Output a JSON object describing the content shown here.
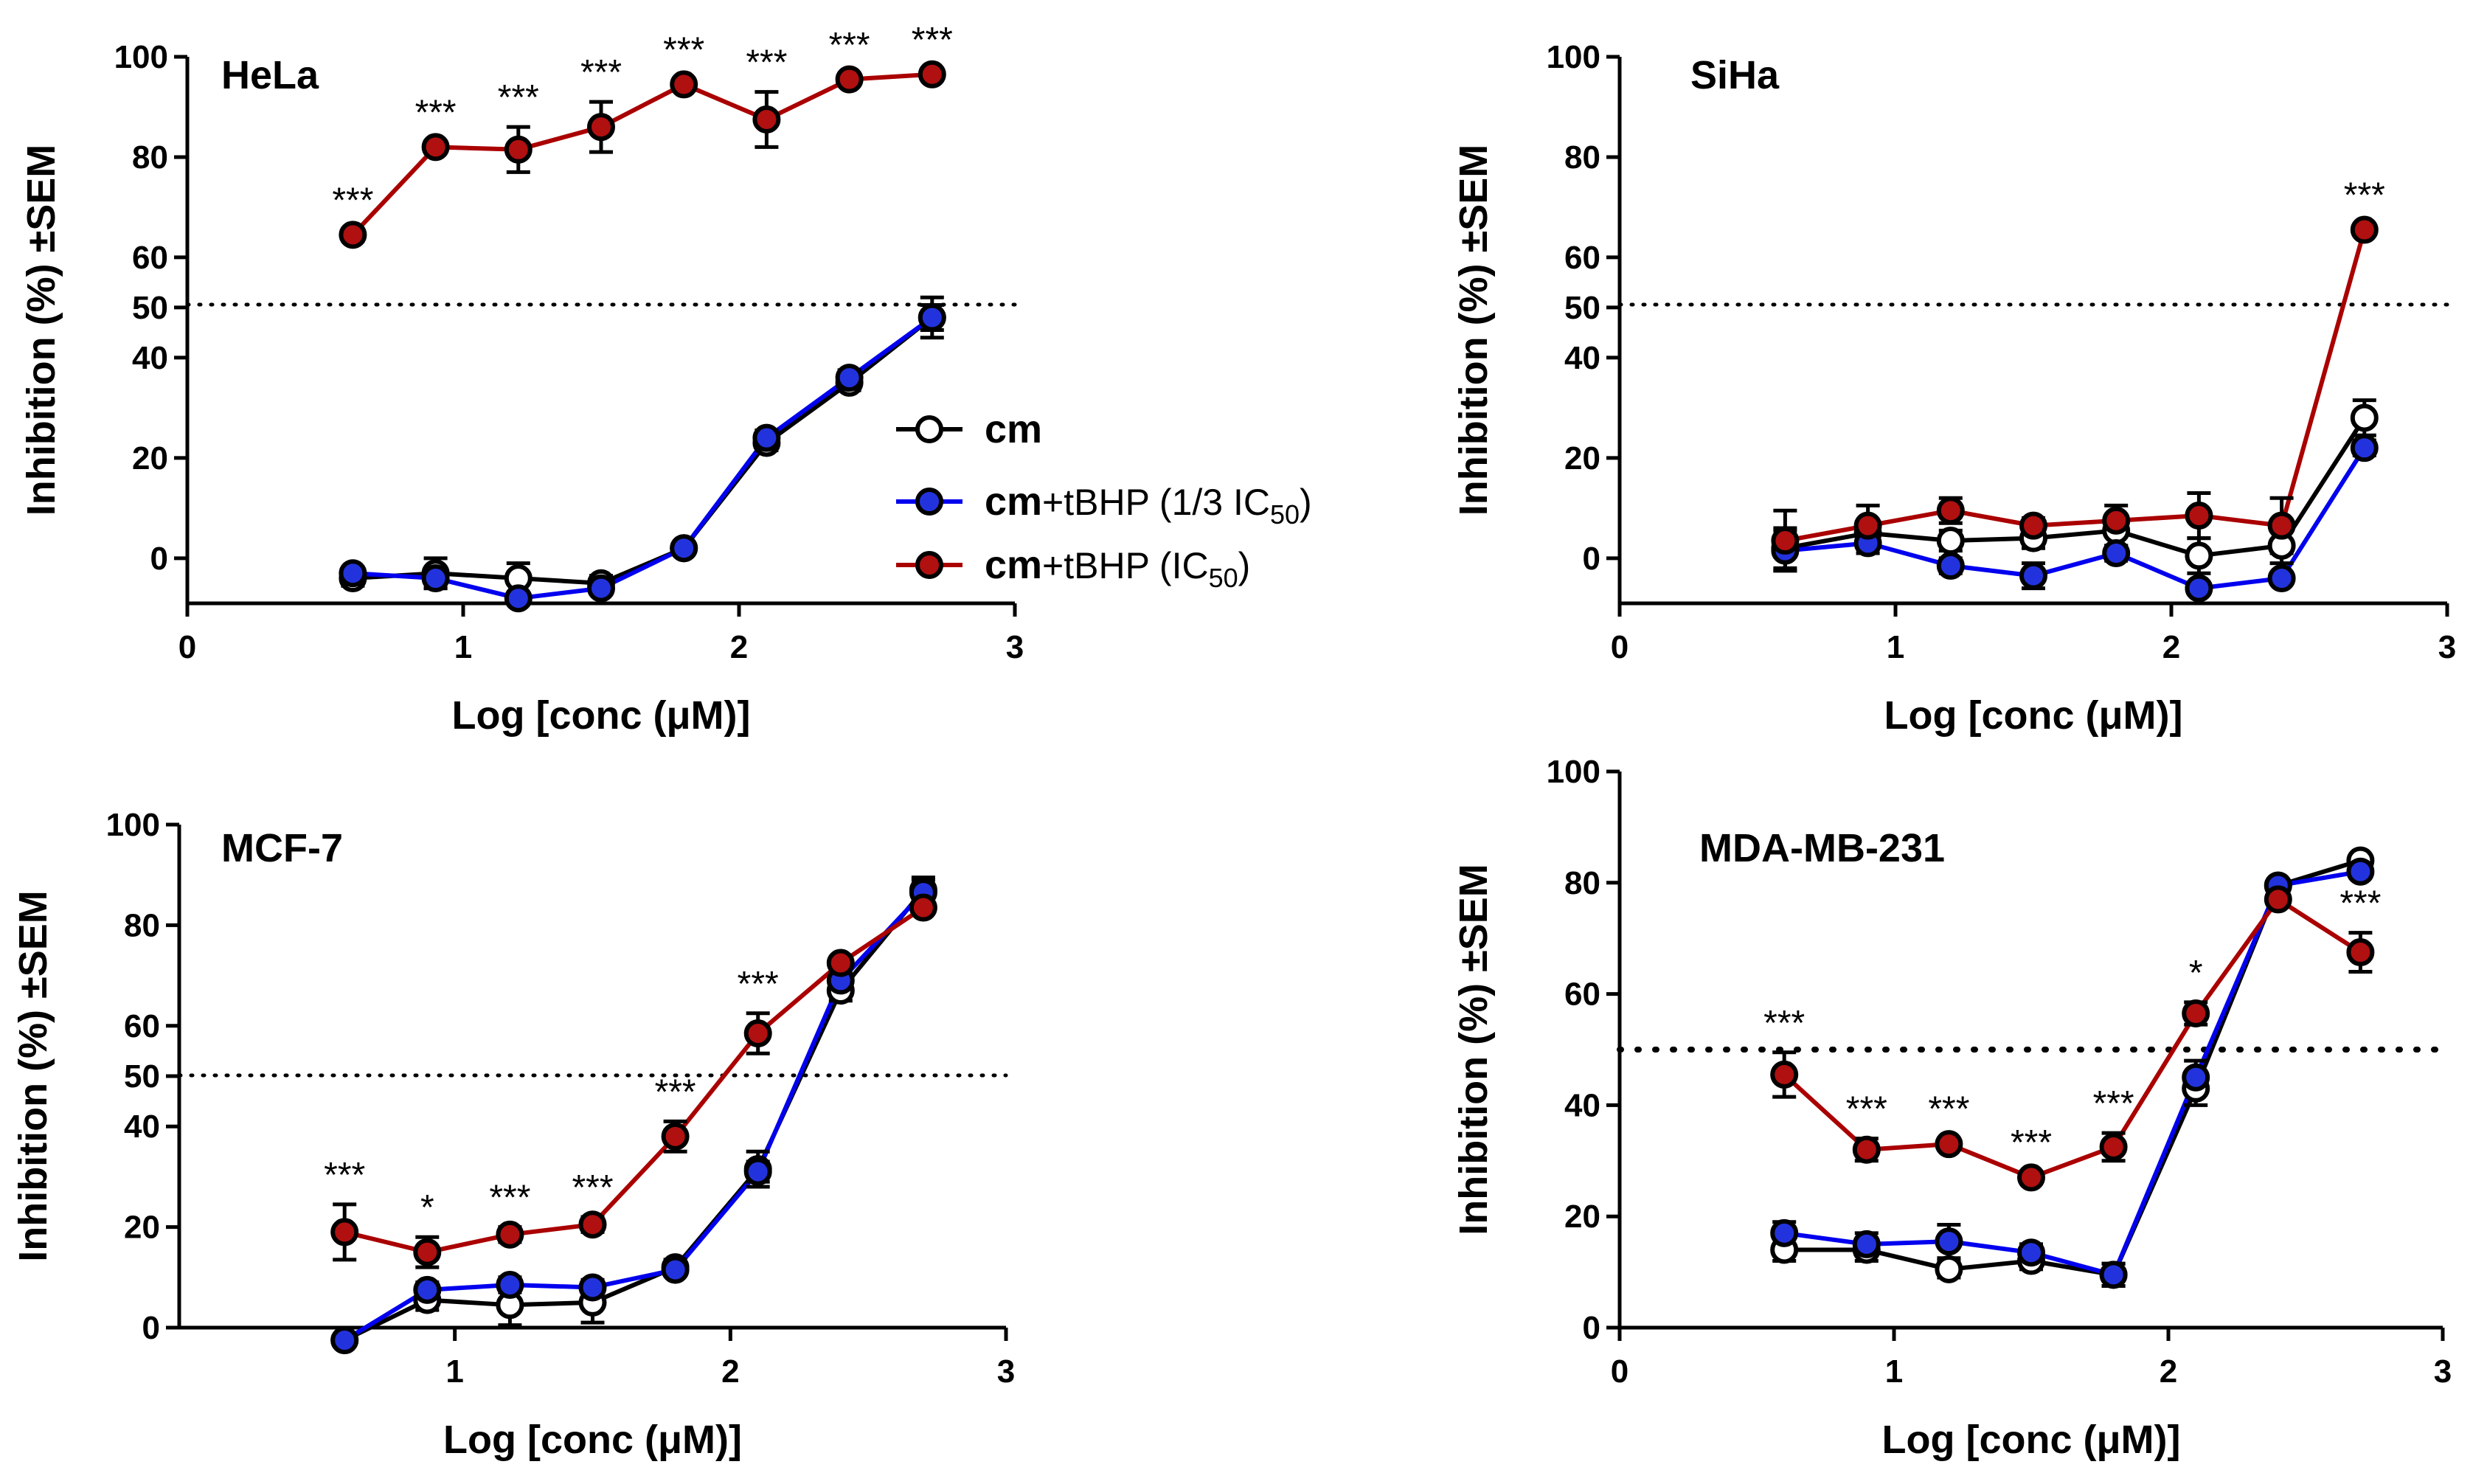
{
  "chart_data": [
    {
      "type": "line",
      "title": "HeLa",
      "xlabel": "Log [conc (μM)]",
      "ylabel": "Inhibition (%) ±SEM",
      "xlim": [
        0,
        3
      ],
      "ylim": [
        -9,
        100
      ],
      "xticks": [
        0,
        1,
        2,
        3
      ],
      "yticks": [
        0,
        20,
        40,
        50,
        60,
        80,
        100
      ],
      "reference_line": 50,
      "x": [
        0.6,
        0.9,
        1.2,
        1.5,
        1.8,
        2.1,
        2.4,
        2.7
      ],
      "series": [
        {
          "name": "cm",
          "color": "#000000",
          "fill": "#ffffff",
          "values": [
            -4,
            -3,
            -4,
            -5,
            2,
            23,
            35,
            48
          ],
          "errors": [
            1.5,
            3,
            3,
            1.5,
            1,
            1.5,
            1.5,
            4
          ]
        },
        {
          "name": "cm+tBHP (1/3 IC50)",
          "color": "#0000ee",
          "fill": "#2233dd",
          "values": [
            -3,
            -4,
            -8,
            -6,
            2,
            24,
            36,
            48
          ],
          "errors": [
            1,
            2,
            1,
            1,
            1,
            1.5,
            1.5,
            2.5
          ]
        },
        {
          "name": "cm+tBHP (IC50)",
          "color": "#aa0000",
          "fill": "#b01010",
          "values": [
            64.5,
            82,
            81.5,
            86,
            94.5,
            87.5,
            95.5,
            96.5
          ],
          "errors": [
            1,
            1,
            4.5,
            5,
            1,
            5.5,
            1,
            1
          ]
        }
      ],
      "significance": [
        "***",
        "***",
        "***",
        "***",
        "***",
        "***",
        "***",
        "***"
      ]
    },
    {
      "type": "line",
      "title": "SiHa",
      "xlabel": "Log [conc (μM)]",
      "ylabel": "Inhibition (%) ±SEM",
      "xlim": [
        0,
        3
      ],
      "ylim": [
        -9,
        100
      ],
      "xticks": [
        0,
        1,
        2,
        3
      ],
      "yticks": [
        0,
        20,
        40,
        50,
        60,
        80,
        100
      ],
      "reference_line": 50,
      "x": [
        0.6,
        0.9,
        1.2,
        1.5,
        1.8,
        2.1,
        2.4,
        2.7
      ],
      "series": [
        {
          "name": "cm",
          "color": "#000000",
          "fill": "#ffffff",
          "values": [
            2,
            5,
            3.5,
            4,
            5.5,
            0.5,
            2.5,
            28
          ],
          "errors": [
            4,
            2.5,
            2,
            2,
            3,
            3.5,
            3.5,
            3.5
          ]
        },
        {
          "name": "cm+tBHP (1/3 IC50)",
          "color": "#0000ee",
          "fill": "#2233dd",
          "values": [
            1.5,
            3,
            -1.5,
            -3.5,
            1,
            -6,
            -4,
            22
          ],
          "errors": [
            4,
            2,
            1.5,
            2.5,
            1.5,
            1,
            1,
            1.5
          ]
        },
        {
          "name": "cm+tBHP (IC50)",
          "color": "#aa0000",
          "fill": "#b01010",
          "values": [
            3.5,
            6.5,
            9.5,
            6.5,
            7.5,
            8.5,
            6.5,
            65.5
          ],
          "errors": [
            6,
            4,
            2.5,
            1.5,
            3,
            4.5,
            5.5,
            1
          ]
        }
      ],
      "significance": [
        "",
        "",
        "",
        "",
        "",
        "",
        "",
        "***"
      ]
    },
    {
      "type": "line",
      "title": "MCF-7",
      "xlabel": "Log [conc (μM)]",
      "ylabel": "Inhibition (%) ±SEM",
      "xlim": [
        0,
        3
      ],
      "ylim": [
        0,
        100
      ],
      "xticks": [
        1,
        2,
        3
      ],
      "yticks": [
        0,
        20,
        40,
        50,
        60,
        80,
        100
      ],
      "reference_line": 50,
      "x": [
        0.6,
        0.9,
        1.2,
        1.5,
        1.8,
        2.1,
        2.4,
        2.7
      ],
      "series": [
        {
          "name": "cm",
          "color": "#000000",
          "fill": "#ffffff",
          "values": [
            -2.5,
            5.5,
            4.5,
            5,
            12,
            31.5,
            67,
            87
          ],
          "errors": [
            1,
            2,
            4,
            4,
            1.5,
            3.5,
            2,
            2.5
          ]
        },
        {
          "name": "cm+tBHP (1/3 IC50)",
          "color": "#0000ee",
          "fill": "#2233dd",
          "values": [
            -2.5,
            7.5,
            8.5,
            8,
            11.5,
            31,
            69,
            86.5
          ],
          "errors": [
            1,
            1.5,
            1.5,
            1.5,
            1,
            2,
            1.5,
            2.5
          ]
        },
        {
          "name": "cm+tBHP (IC50)",
          "color": "#aa0000",
          "fill": "#b01010",
          "values": [
            19,
            15,
            18.5,
            20.5,
            38,
            58.5,
            72.5,
            83.5
          ],
          "errors": [
            5.5,
            3,
            1.5,
            1.5,
            3,
            4,
            1,
            1
          ]
        }
      ],
      "significance": [
        "***",
        "*",
        "***",
        "***",
        "***",
        "***",
        "",
        ""
      ]
    },
    {
      "type": "line",
      "title": "MDA-MB-231",
      "xlabel": "Log [conc (μM)]",
      "ylabel": "Inhibition (%) ±SEM",
      "xlim": [
        0,
        3
      ],
      "ylim": [
        0,
        100
      ],
      "xticks": [
        0,
        1,
        2,
        3
      ],
      "yticks": [
        0,
        20,
        40,
        60,
        80,
        100
      ],
      "reference_line": 50,
      "x": [
        0.6,
        0.9,
        1.2,
        1.5,
        1.8,
        2.1,
        2.4,
        2.7
      ],
      "series": [
        {
          "name": "cm",
          "color": "#000000",
          "fill": "#ffffff",
          "values": [
            14,
            14,
            10.5,
            12,
            9.5,
            43,
            79.5,
            84
          ],
          "errors": [
            2,
            2,
            1.5,
            1.5,
            2,
            3,
            1,
            1
          ]
        },
        {
          "name": "cm+tBHP (1/3 IC50)",
          "color": "#0000ee",
          "fill": "#2233dd",
          "values": [
            17,
            15,
            15.5,
            13.5,
            9.5,
            45,
            79.5,
            82
          ],
          "errors": [
            2,
            2,
            3,
            1.5,
            2,
            3,
            1,
            1
          ]
        },
        {
          "name": "cm+tBHP (IC50)",
          "color": "#aa0000",
          "fill": "#b01010",
          "values": [
            45.5,
            32,
            33,
            27,
            32.5,
            56.5,
            77,
            67.5
          ],
          "errors": [
            4,
            2,
            1,
            1,
            2.5,
            2,
            1,
            3.5
          ]
        }
      ],
      "significance": [
        "***",
        "***",
        "***",
        "***",
        "***",
        "*",
        "",
        "***"
      ]
    }
  ],
  "legend": {
    "entries": [
      {
        "bold": "cm",
        "rest": "",
        "sub": "",
        "tail": ""
      },
      {
        "bold": "cm",
        "rest": "+tBHP (1/3 IC",
        "sub": "50",
        "tail": ")"
      },
      {
        "bold": "cm",
        "rest": "+tBHP (IC",
        "sub": "50",
        "tail": ")"
      }
    ]
  }
}
